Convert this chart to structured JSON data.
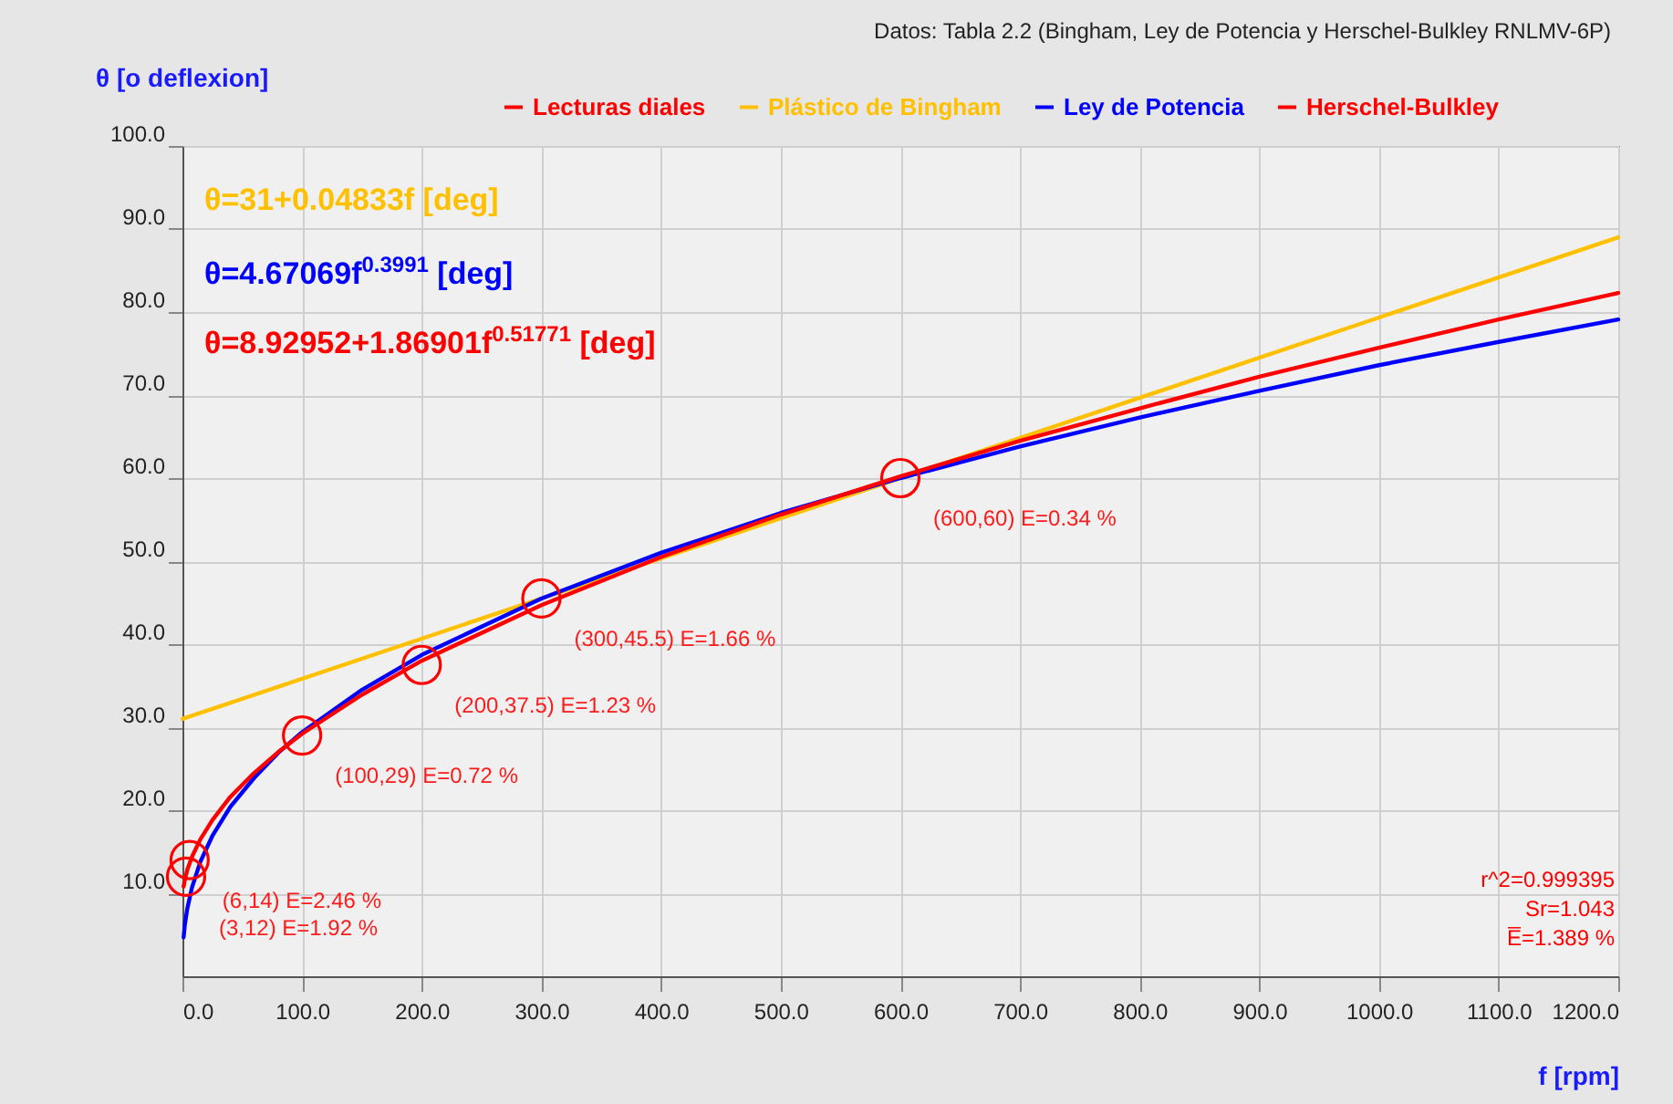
{
  "chart_data": {
    "type": "line",
    "title": "Datos: Tabla 2.2 (Bingham, Ley de Potencia y Herschel-Bulkley RNLMV-6P)",
    "xlabel": "f [rpm]",
    "ylabel": "θ [o deflexion]",
    "xlim": [
      0,
      1200
    ],
    "xticks": [
      {
        "value": 0,
        "label": "0.0"
      },
      {
        "value": 100,
        "label": "100.0"
      },
      {
        "value": 200,
        "label": "200.0"
      },
      {
        "value": 300,
        "label": "300.0"
      },
      {
        "value": 400,
        "label": "400.0"
      },
      {
        "value": 500,
        "label": "500.0"
      },
      {
        "value": 600,
        "label": "600.0"
      },
      {
        "value": 700,
        "label": "700.0"
      },
      {
        "value": 800,
        "label": "800.0"
      },
      {
        "value": 900,
        "label": "900.0"
      },
      {
        "value": 1000,
        "label": "1000.0"
      },
      {
        "value": 1100,
        "label": "1100.0"
      },
      {
        "value": 1200,
        "label": "1200.0"
      }
    ],
    "ylim": [
      0,
      100
    ],
    "yticks": [
      {
        "value": 10,
        "label": "10.0"
      },
      {
        "value": 20,
        "label": "20.0"
      },
      {
        "value": 30,
        "label": "30.0"
      },
      {
        "value": 40,
        "label": "40.0"
      },
      {
        "value": 50,
        "label": "50.0"
      },
      {
        "value": 60,
        "label": "60.0"
      },
      {
        "value": 70,
        "label": "70.0"
      },
      {
        "value": 80,
        "label": "80.0"
      },
      {
        "value": 90,
        "label": "90.0"
      },
      {
        "value": 100,
        "label": "100.0"
      }
    ],
    "grid": true,
    "legend": "top",
    "line_style": "solid",
    "series": [
      {
        "name": "Lecturas diales",
        "type": "scatter",
        "marker": "circle",
        "color": "#ff0000",
        "x": [
          3,
          6,
          100,
          200,
          300,
          600
        ],
        "values": [
          12,
          14,
          29,
          37.5,
          45.5,
          60
        ]
      },
      {
        "name": "Plástico de Bingham",
        "type": "line",
        "color": "#ffc000",
        "x": [
          0,
          1200
        ],
        "values": [
          31,
          89.0
        ]
      },
      {
        "name": "Ley de Potencia",
        "type": "line",
        "color": "#0000ff",
        "x": [
          1,
          2,
          4,
          8,
          15,
          25,
          40,
          60,
          80,
          100,
          150,
          200,
          300,
          400,
          500,
          600,
          700,
          800,
          900,
          1000,
          1100,
          1200
        ],
        "values": [
          4.7,
          6.2,
          8.1,
          10.7,
          13.8,
          16.9,
          20.4,
          23.9,
          26.9,
          29.4,
          34.5,
          38.7,
          45.5,
          51.0,
          55.8,
          60.0,
          63.8,
          67.3,
          70.5,
          73.6,
          76.4,
          79.1
        ]
      },
      {
        "name": "Herschel-Bulkley",
        "type": "line",
        "color": "#ff0000",
        "x": [
          1,
          2,
          4,
          8,
          15,
          25,
          40,
          60,
          80,
          100,
          150,
          200,
          300,
          400,
          500,
          600,
          700,
          800,
          900,
          1000,
          1100,
          1200
        ],
        "values": [
          10.8,
          11.6,
          12.8,
          14.4,
          16.5,
          18.8,
          21.6,
          24.5,
          27.0,
          29.2,
          33.9,
          38.0,
          44.7,
          50.5,
          55.6,
          60.2,
          64.5,
          68.4,
          72.2,
          75.7,
          79.1,
          82.3
        ]
      }
    ],
    "annotations": [
      "θ=31+0.04833f [deg]",
      "θ=4.67069f$^{0.3991}$ [deg]",
      "θ=8.92952+1.86901f$^{0.51771}$ [deg]",
      "r^2=0.999395",
      "Sr=1.043",
      "E̅=1.389 %",
      {
        "text": "(600,60) E=0.34 %",
        "x": 600,
        "y": 60
      },
      {
        "text": "(300,45.5) E=1.66 %",
        "x": 300,
        "y": 45.5
      },
      {
        "text": "(200,37.5) E=1.23 %",
        "x": 200,
        "y": 37.5
      },
      {
        "text": "(100,29) E=0.72 %",
        "x": 100,
        "y": 29
      },
      {
        "text": "(6,14) E=2.46 %",
        "x": 6,
        "y": 14
      },
      {
        "text": "(3,12) E=1.92 %",
        "x": 3,
        "y": 12
      }
    ]
  }
}
